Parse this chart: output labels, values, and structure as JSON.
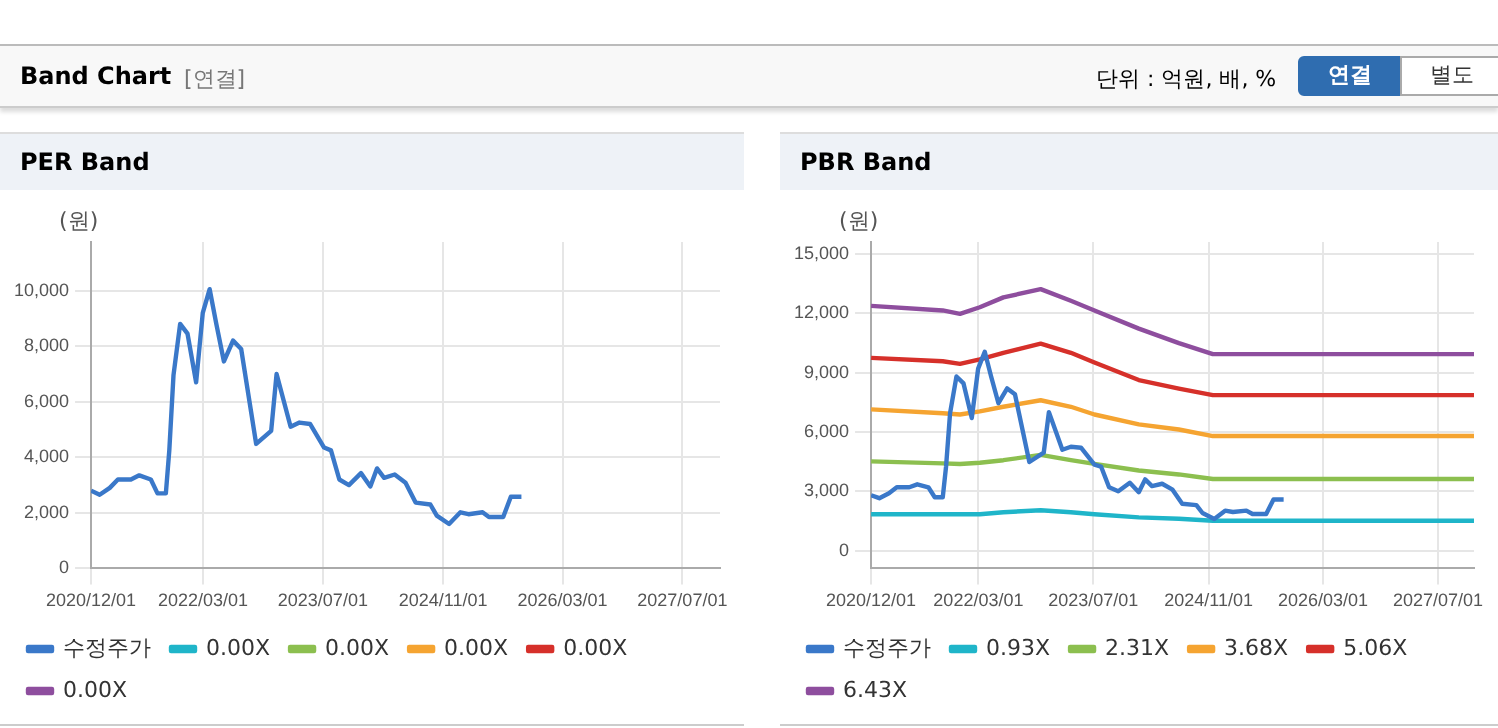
{
  "chart_data": [
    {
      "type": "line",
      "title": "PER Band",
      "ylabel": "(원)",
      "annotations": [
        "Band Chart",
        "[연결]",
        "단위 : 억원, 배, %",
        "연결",
        "별도"
      ],
      "xlim": [
        "2020-12-01",
        "2027-12-01"
      ],
      "xticks": [
        {
          "value": "2020-12-01",
          "label": "2020/12/01"
        },
        {
          "value": "2022-03-01",
          "label": "2022/03/01"
        },
        {
          "value": "2023-07-01",
          "label": "2023/07/01"
        },
        {
          "value": "2024-11-01",
          "label": "2024/11/01"
        },
        {
          "value": "2026-03-01",
          "label": "2026/03/01"
        },
        {
          "value": "2027-07-01",
          "label": "2027/07/01"
        }
      ],
      "ylim": [
        0,
        11750
      ],
      "yticks": [
        0,
        {
          "value": 2000,
          "label": "2,000"
        },
        {
          "value": 4000,
          "label": "4,000"
        },
        {
          "value": 6000,
          "label": "6,000"
        },
        {
          "value": 8000,
          "label": "8,000"
        },
        {
          "value": 10000,
          "label": "10,000"
        }
      ],
      "grid": true,
      "legend": "bottom",
      "marker": "none",
      "line_style": "solid",
      "series": [
        {
          "name": "수정주가",
          "color": "#3a78c9",
          "x": [
            "2020-12-01",
            "2021-01-05",
            "2021-02-15",
            "2021-03-20",
            "2021-05-12",
            "2021-06-15",
            "2021-08-01",
            "2021-08-28",
            "2021-10-01",
            "2021-10-15",
            "2021-11-01",
            "2021-11-28",
            "2021-12-28",
            "2022-02-01",
            "2022-02-28",
            "2022-03-28",
            "2022-04-24",
            "2022-05-25",
            "2022-07-01",
            "2022-08-03",
            "2022-10-03",
            "2022-12-03",
            "2022-12-25",
            "2023-02-20",
            "2023-03-28",
            "2023-05-10",
            "2023-07-06",
            "2023-08-03",
            "2023-09-06",
            "2023-10-15",
            "2023-12-03",
            "2024-01-10",
            "2024-02-06",
            "2024-03-06",
            "2024-04-18",
            "2024-06-01",
            "2024-07-12",
            "2024-09-10",
            "2024-10-06",
            "2024-11-25",
            "2025-01-10",
            "2025-02-12",
            "2025-04-10",
            "2025-05-06",
            "2025-07-03",
            "2025-08-03",
            "2025-09-15"
          ],
          "values": [
            2800,
            2650,
            2900,
            3200,
            3200,
            3350,
            3200,
            2700,
            2700,
            4250,
            6950,
            8800,
            8450,
            6700,
            9200,
            10050,
            8800,
            7450,
            8200,
            7900,
            4480,
            4950,
            7000,
            5100,
            5250,
            5200,
            4350,
            4250,
            3200,
            3000,
            3430,
            2950,
            3600,
            3260,
            3380,
            3080,
            2370,
            2300,
            1900,
            1600,
            2020,
            1950,
            2020,
            1850,
            1850,
            2580,
            2580
          ]
        },
        {
          "name": "0.00X",
          "color": "#1fb5c9"
        },
        {
          "name": "0.00X",
          "color": "#8cbf4f"
        },
        {
          "name": "0.00X",
          "color": "#f5a431"
        },
        {
          "name": "0.00X",
          "color": "#d6302a"
        },
        {
          "name": "0.00X",
          "color": "#8e4e9e"
        }
      ]
    },
    {
      "type": "line",
      "title": "PBR Band",
      "ylabel": "(원)",
      "xlim": [
        "2020-12-01",
        "2027-12-01"
      ],
      "xticks": [
        {
          "value": "2020-12-01",
          "label": "2020/12/01"
        },
        {
          "value": "2022-03-01",
          "label": "2022/03/01"
        },
        {
          "value": "2023-07-01",
          "label": "2023/07/01"
        },
        {
          "value": "2024-11-01",
          "label": "2024/11/01"
        },
        {
          "value": "2026-03-01",
          "label": "2026/03/01"
        },
        {
          "value": "2027-07-01",
          "label": "2027/07/01"
        }
      ],
      "ylim": [
        -900,
        15600
      ],
      "yticks": [
        0,
        {
          "value": 3000,
          "label": "3,000"
        },
        {
          "value": 6000,
          "label": "6,000"
        },
        {
          "value": 9000,
          "label": "9,000"
        },
        {
          "value": 12000,
          "label": "12,000"
        },
        {
          "value": 15000,
          "label": "15,000"
        }
      ],
      "grid": true,
      "legend": "bottom",
      "marker": "none",
      "line_style": "solid",
      "series": [
        {
          "name": "수정주가",
          "color": "#3a78c9",
          "x": [
            "2020-12-01",
            "2021-01-05",
            "2021-02-15",
            "2021-03-20",
            "2021-05-12",
            "2021-06-15",
            "2021-08-01",
            "2021-08-28",
            "2021-10-01",
            "2021-10-15",
            "2021-11-01",
            "2021-11-28",
            "2021-12-28",
            "2022-02-01",
            "2022-02-28",
            "2022-03-28",
            "2022-04-24",
            "2022-05-25",
            "2022-07-01",
            "2022-08-03",
            "2022-10-03",
            "2022-12-03",
            "2022-12-25",
            "2023-02-20",
            "2023-03-28",
            "2023-05-10",
            "2023-07-06",
            "2023-08-03",
            "2023-09-06",
            "2023-10-15",
            "2023-12-03",
            "2024-01-10",
            "2024-02-06",
            "2024-03-06",
            "2024-04-18",
            "2024-06-01",
            "2024-07-12",
            "2024-09-10",
            "2024-10-06",
            "2024-11-25",
            "2025-01-10",
            "2025-02-12",
            "2025-04-10",
            "2025-05-06",
            "2025-07-03",
            "2025-08-03",
            "2025-09-15"
          ],
          "values": [
            2800,
            2650,
            2900,
            3200,
            3200,
            3350,
            3200,
            2700,
            2700,
            4250,
            6950,
            8800,
            8450,
            6700,
            9200,
            10050,
            8800,
            7450,
            8200,
            7900,
            4480,
            4950,
            7000,
            5100,
            5250,
            5200,
            4350,
            4250,
            3200,
            3000,
            3430,
            2950,
            3600,
            3260,
            3380,
            3080,
            2370,
            2300,
            1900,
            1600,
            2020,
            1950,
            2020,
            1850,
            1850,
            2580,
            2580
          ]
        },
        {
          "name": "0.93X",
          "color": "#1fb5c9",
          "x": [
            "2020-12-01",
            "2022-03-07",
            "2022-06-15",
            "2022-11-20",
            "2023-03-28",
            "2023-07-06",
            "2024-01-10",
            "2024-06-28",
            "2024-11-19",
            "2027-12-01"
          ],
          "values": [
            1840,
            1840,
            1940,
            2040,
            1940,
            1840,
            1680,
            1610,
            1510,
            1510
          ]
        },
        {
          "name": "2.31X",
          "color": "#8cbf4f",
          "x": [
            "2020-12-01",
            "2021-10-01",
            "2021-12-13",
            "2022-03-07",
            "2022-06-15",
            "2022-11-20",
            "2023-03-28",
            "2023-07-06",
            "2024-01-10",
            "2024-06-28",
            "2024-11-19",
            "2027-12-01"
          ],
          "values": [
            4510,
            4410,
            4380,
            4440,
            4570,
            4840,
            4570,
            4380,
            4050,
            3850,
            3620,
            3620
          ]
        },
        {
          "name": "3.68X",
          "color": "#f5a431",
          "x": [
            "2020-12-01",
            "2021-10-01",
            "2021-12-13",
            "2022-03-07",
            "2022-06-15",
            "2022-11-20",
            "2023-03-28",
            "2023-07-06",
            "2024-01-10",
            "2024-06-28",
            "2024-11-19",
            "2027-12-01"
          ],
          "values": [
            7140,
            6940,
            6880,
            7040,
            7270,
            7600,
            7270,
            6880,
            6380,
            6120,
            5790,
            5790
          ]
        },
        {
          "name": "5.06X",
          "color": "#d6302a",
          "x": [
            "2020-12-01",
            "2021-10-01",
            "2021-12-13",
            "2022-03-07",
            "2022-06-15",
            "2022-11-20",
            "2023-03-28",
            "2023-07-06",
            "2024-01-10",
            "2024-06-28",
            "2024-11-19",
            "2027-12-01"
          ],
          "values": [
            9740,
            9570,
            9440,
            9670,
            10000,
            10460,
            10000,
            9510,
            8620,
            8190,
            7860,
            7860
          ]
        },
        {
          "name": "6.43X",
          "color": "#8e4e9e",
          "x": [
            "2020-12-01",
            "2021-10-01",
            "2021-12-13",
            "2022-03-07",
            "2022-06-15",
            "2022-11-20",
            "2023-03-28",
            "2023-07-06",
            "2024-01-10",
            "2024-06-28",
            "2024-11-19",
            "2027-12-01"
          ],
          "values": [
            12370,
            12140,
            11970,
            12300,
            12800,
            13220,
            12630,
            12140,
            11220,
            10490,
            9930,
            9930
          ]
        }
      ]
    }
  ]
}
